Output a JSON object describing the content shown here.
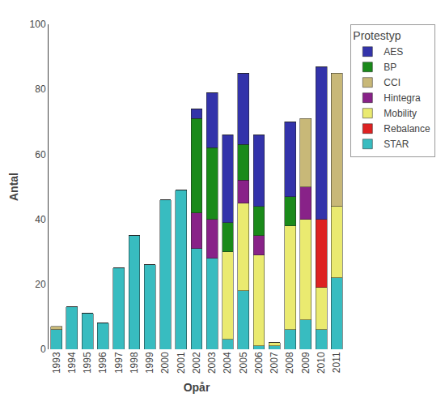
{
  "chart_data": {
    "type": "bar",
    "stacked": true,
    "xlabel": "Opår",
    "ylabel": "Antal",
    "legend_title": "Protestyp",
    "legend": "upper right",
    "grid": false,
    "categories": [
      "1993",
      "1994",
      "1995",
      "1996",
      "1997",
      "1998",
      "1999",
      "2000",
      "2001",
      "2002",
      "2003",
      "2004",
      "2005",
      "2006",
      "2007",
      "2008",
      "2009",
      "2010",
      "2011"
    ],
    "series": [
      {
        "name": "STAR",
        "color": "#38bcc0",
        "values": [
          6,
          13,
          11,
          8,
          25,
          35,
          26,
          46,
          49,
          31,
          28,
          3,
          18,
          1,
          1,
          6,
          9,
          6,
          22
        ]
      },
      {
        "name": "Mobility",
        "color": "#eaea70",
        "values": [
          0,
          0,
          0,
          0,
          0,
          0,
          0,
          0,
          0,
          0,
          0,
          27,
          27,
          28,
          1,
          32,
          31,
          13,
          22
        ]
      },
      {
        "name": "Rebalance",
        "color": "#dd2222",
        "values": [
          0,
          0,
          0,
          0,
          0,
          0,
          0,
          0,
          0,
          0,
          0,
          0,
          0,
          0,
          0,
          0,
          0,
          21,
          0
        ]
      },
      {
        "name": "Hintegra",
        "color": "#882288",
        "values": [
          0,
          0,
          0,
          0,
          0,
          0,
          0,
          0,
          0,
          11,
          12,
          0,
          7,
          6,
          0,
          0,
          10,
          0,
          0
        ]
      },
      {
        "name": "BP",
        "color": "#1a8a1a",
        "values": [
          0,
          0,
          0,
          0,
          0,
          0,
          0,
          0,
          0,
          29,
          22,
          9,
          11,
          9,
          0,
          9,
          0,
          0,
          0
        ]
      },
      {
        "name": "AES",
        "color": "#3333aa",
        "values": [
          0,
          0,
          0,
          0,
          0,
          0,
          0,
          0,
          0,
          3,
          17,
          27,
          22,
          22,
          0,
          23,
          0,
          47,
          0
        ]
      },
      {
        "name": "CCI",
        "color": "#c8b878",
        "values": [
          1,
          0,
          0,
          0,
          0,
          0,
          0,
          0,
          0,
          0,
          0,
          0,
          0,
          0,
          0,
          0,
          21,
          0,
          41
        ]
      }
    ],
    "ylim": [
      0,
      100
    ],
    "yticks": [
      0,
      20,
      40,
      60,
      80,
      100
    ]
  }
}
